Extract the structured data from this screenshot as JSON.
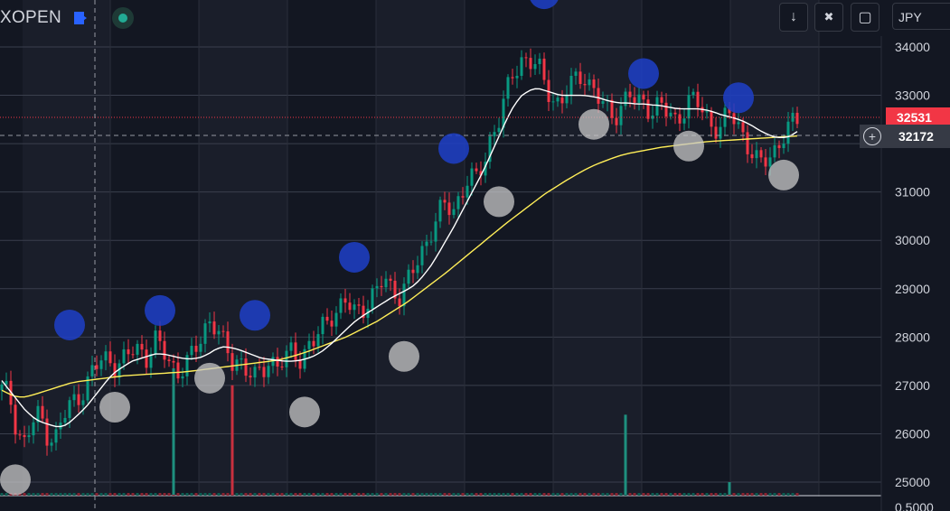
{
  "header": {
    "symbol": "XOPEN",
    "currency": "JPY"
  },
  "toolbar": {
    "down_icon": "arrow-down-icon",
    "collapse_icon": "collapse-icon",
    "fullscreen_icon": "fullscreen-icon"
  },
  "colors": {
    "up": "#089981",
    "down": "#f23645",
    "ma_fast": "#ffffff",
    "ma_slow": "#ffee58",
    "bubble_blue": "#1e40c8",
    "bubble_white": "#c8c8c8",
    "price_line": "#f23645"
  },
  "price_axis": {
    "ticks": [
      "34000",
      "33000",
      "32000",
      "31000",
      "30000",
      "29000",
      "28000",
      "27000",
      "26000",
      "25000",
      "0.5000"
    ],
    "last_price_label": "32531",
    "crosshair_label": "32172"
  },
  "chart_data": {
    "type": "candlestick",
    "ylim": [
      24700,
      35000
    ],
    "grid": true,
    "ohlc_close_series": [
      26900,
      26800,
      26100,
      25800,
      26200,
      26400,
      26000,
      25900,
      26300,
      26600,
      26800,
      27000,
      27300,
      27500,
      27600,
      27400,
      27500,
      27700,
      27800,
      27600,
      27900,
      27700,
      27500,
      27300,
      27400,
      27600,
      28000,
      28400,
      28200,
      27800,
      27500,
      27600,
      27300,
      27100,
      27300,
      27600,
      27400,
      27500,
      27700,
      27600,
      27800,
      27900,
      28200,
      28500,
      28600,
      28700,
      28500,
      28600,
      28800,
      28900,
      29200,
      29000,
      28900,
      29100,
      29400,
      29800,
      30200,
      30500,
      30700,
      30600,
      31000,
      31300,
      31200,
      31600,
      32200,
      32500,
      33000,
      33500,
      33800,
      33700,
      33600,
      33200,
      33000,
      32800,
      33100,
      33300,
      33500,
      33200,
      32900,
      32700,
      32600,
      32800,
      33000,
      32800,
      32900,
      32700,
      32800,
      32600,
      32500,
      32700,
      32900,
      32800,
      32600,
      32400,
      32300,
      32600,
      32500,
      32200,
      31800,
      31500,
      31700,
      31900,
      32100,
      32300,
      32500
    ],
    "ma_fast_series": [
      27100,
      26900,
      26700,
      26500,
      26350,
      26250,
      26200,
      26150,
      26150,
      26250,
      26400,
      26550,
      26750,
      26950,
      27150,
      27300,
      27400,
      27500,
      27550,
      27600,
      27650,
      27650,
      27620,
      27580,
      27550,
      27550,
      27580,
      27650,
      27750,
      27800,
      27780,
      27740,
      27680,
      27620,
      27560,
      27540,
      27520,
      27500,
      27500,
      27520,
      27560,
      27620,
      27720,
      27850,
      28000,
      28150,
      28300,
      28420,
      28520,
      28620,
      28720,
      28820,
      28900,
      28980,
      29080,
      29250,
      29450,
      29700,
      29980,
      30250,
      30550,
      30850,
      31150,
      31450,
      31800,
      32150,
      32500,
      32800,
      33000,
      33100,
      33150,
      33100,
      33050,
      33000,
      33000,
      33000,
      33000,
      32980,
      32950,
      32900,
      32860,
      32840,
      32840,
      32820,
      32820,
      32800,
      32790,
      32760,
      32730,
      32720,
      32720,
      32720,
      32700,
      32660,
      32600,
      32560,
      32520,
      32460,
      32380,
      32280,
      32200,
      32140,
      32120,
      32150,
      32250
    ],
    "ma_slow_series": [
      26900,
      26820,
      26760,
      26760,
      26800,
      26850,
      26900,
      26950,
      27000,
      27050,
      27080,
      27100,
      27120,
      27140,
      27160,
      27180,
      27200,
      27210,
      27220,
      27230,
      27240,
      27250,
      27260,
      27270,
      27280,
      27300,
      27320,
      27340,
      27360,
      27380,
      27400,
      27420,
      27440,
      27460,
      27480,
      27500,
      27520,
      27560,
      27600,
      27650,
      27700,
      27760,
      27820,
      27880,
      27940,
      28000,
      28080,
      28160,
      28240,
      28320,
      28420,
      28520,
      28620,
      28720,
      28840,
      28960,
      29080,
      29200,
      29320,
      29450,
      29580,
      29710,
      29840,
      29970,
      30100,
      30230,
      30360,
      30480,
      30600,
      30720,
      30840,
      30960,
      31060,
      31160,
      31260,
      31350,
      31440,
      31520,
      31590,
      31650,
      31710,
      31760,
      31800,
      31830,
      31860,
      31890,
      31920,
      31940,
      31960,
      31980,
      32000,
      32020,
      32040,
      32050,
      32060,
      32070,
      32080,
      32090,
      32100,
      32110,
      32120,
      32130,
      32140,
      32150,
      32160
    ],
    "volume_spikes": [
      {
        "bar": 38,
        "value": 3000,
        "dir": "up"
      },
      {
        "bar": 51,
        "value": 2600,
        "dir": "down"
      },
      {
        "bar": 138,
        "value": 1900,
        "dir": "up"
      },
      {
        "bar": 161,
        "value": 300,
        "dir": "up"
      }
    ],
    "bubbles": [
      {
        "idx": 3,
        "price": 25050,
        "kind": "white"
      },
      {
        "idx": 15,
        "price": 28250,
        "kind": "blue"
      },
      {
        "idx": 25,
        "price": 26550,
        "kind": "white"
      },
      {
        "idx": 35,
        "price": 28550,
        "kind": "blue"
      },
      {
        "idx": 46,
        "price": 27150,
        "kind": "white"
      },
      {
        "idx": 56,
        "price": 28450,
        "kind": "blue"
      },
      {
        "idx": 67,
        "price": 26450,
        "kind": "white"
      },
      {
        "idx": 78,
        "price": 29650,
        "kind": "blue"
      },
      {
        "idx": 89,
        "price": 27600,
        "kind": "white"
      },
      {
        "idx": 100,
        "price": 31900,
        "kind": "blue"
      },
      {
        "idx": 110,
        "price": 30800,
        "kind": "white"
      },
      {
        "idx": 120,
        "price": 35100,
        "kind": "blue"
      },
      {
        "idx": 131,
        "price": 32400,
        "kind": "white"
      },
      {
        "idx": 142,
        "price": 33450,
        "kind": "blue"
      },
      {
        "idx": 152,
        "price": 31950,
        "kind": "white"
      },
      {
        "idx": 163,
        "price": 32950,
        "kind": "blue"
      },
      {
        "idx": 173,
        "price": 31350,
        "kind": "white"
      }
    ]
  }
}
